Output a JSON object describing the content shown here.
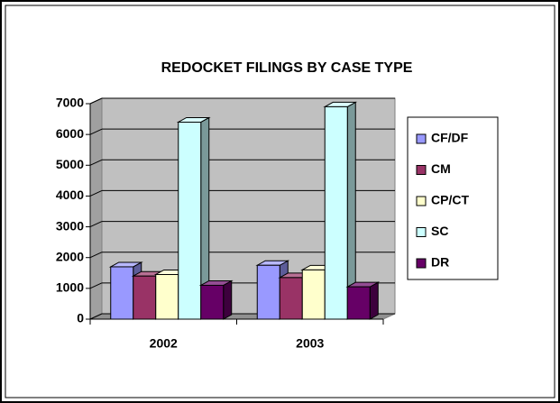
{
  "chart_data": {
    "type": "bar3d",
    "title": "REDOCKET FILINGS BY CASE TYPE",
    "categories": [
      "2002",
      "2003"
    ],
    "series": [
      {
        "name": "CF/DF",
        "color": "#9999ff",
        "values": [
          1700,
          1750
        ]
      },
      {
        "name": "CM",
        "color": "#993366",
        "values": [
          1400,
          1350
        ]
      },
      {
        "name": "CP/CT",
        "color": "#ffffcc",
        "values": [
          1450,
          1600
        ]
      },
      {
        "name": "SC",
        "color": "#ccffff",
        "values": [
          6400,
          6900
        ]
      },
      {
        "name": "DR",
        "color": "#660066",
        "values": [
          1100,
          1050
        ]
      }
    ],
    "ylim": [
      0,
      7000
    ],
    "yticks": [
      0,
      1000,
      2000,
      3000,
      4000,
      5000,
      6000,
      7000
    ],
    "grid": true,
    "legend": "right"
  }
}
